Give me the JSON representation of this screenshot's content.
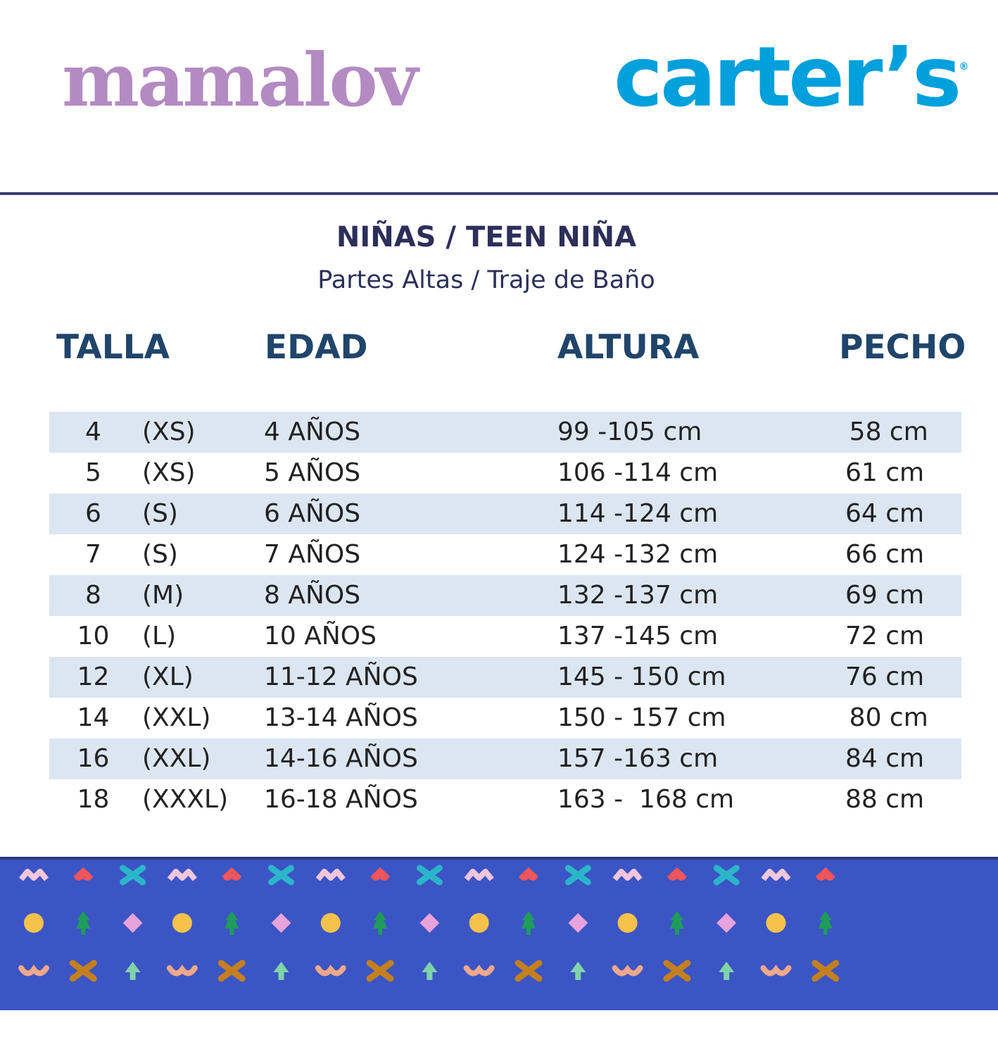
{
  "logos": {
    "left": "mamalov",
    "right": "carter’s",
    "right_mark": "®"
  },
  "heading": {
    "title": "NIÑAS / TEEN NIÑA",
    "subtitle": "Partes Altas / Traje de Baño"
  },
  "columns": [
    "TALLA",
    "EDAD",
    "ALTURA",
    "PECHO"
  ],
  "rows": [
    {
      "num": "4",
      "size": "(XS)",
      "age": "4 AÑOS",
      "height": "99 -105 cm",
      "chest": " 58 cm"
    },
    {
      "num": "5",
      "size": "(XS)",
      "age": "5 AÑOS",
      "height": "106 -114 cm",
      "chest": "61 cm"
    },
    {
      "num": "6",
      "size": "(S)",
      "age": "6 AÑOS",
      "height": "114 -124 cm",
      "chest": "64 cm"
    },
    {
      "num": "7",
      "size": "(S)",
      "age": "7 AÑOS",
      "height": "124 -132 cm",
      "chest": "66 cm"
    },
    {
      "num": "8",
      "size": "(M)",
      "age": "8 AÑOS",
      "height": "132 -137 cm",
      "chest": "69 cm"
    },
    {
      "num": "10",
      "size": "(L)",
      "age": "10 AÑOS",
      "height": "137 -145 cm",
      "chest": "72 cm"
    },
    {
      "num": "12",
      "size": "(XL)",
      "age": "11-12 AÑOS",
      "height": "145 - 150 cm",
      "chest": "76 cm"
    },
    {
      "num": "14",
      "size": "(XXL)",
      "age": "13-14 AÑOS",
      "height": "150 - 157 cm",
      "chest": " 80 cm"
    },
    {
      "num": "16",
      "size": "(XXL)",
      "age": "14-16 AÑOS",
      "height": "157 -163 cm",
      "chest": "84 cm"
    },
    {
      "num": "18",
      "size": "(XXXL)",
      "age": "16-18 AÑOS",
      "height": "163 -  168 cm",
      "chest": "88 cm"
    }
  ],
  "colors": {
    "mamalov": "#b48ac2",
    "carters": "#00a0dc",
    "row_shade": "#dce6f3",
    "band": "#3b55c4",
    "pattern_row1": [
      "#f2c6dc",
      "#f2555a",
      "#2bb5c9"
    ],
    "pattern_row2": [
      "#f6c24a",
      "#1f9c5a",
      "#e8a2dc"
    ],
    "pattern_row3": [
      "#f0a88a",
      "#c47f1e",
      "#7fd3a8"
    ]
  }
}
